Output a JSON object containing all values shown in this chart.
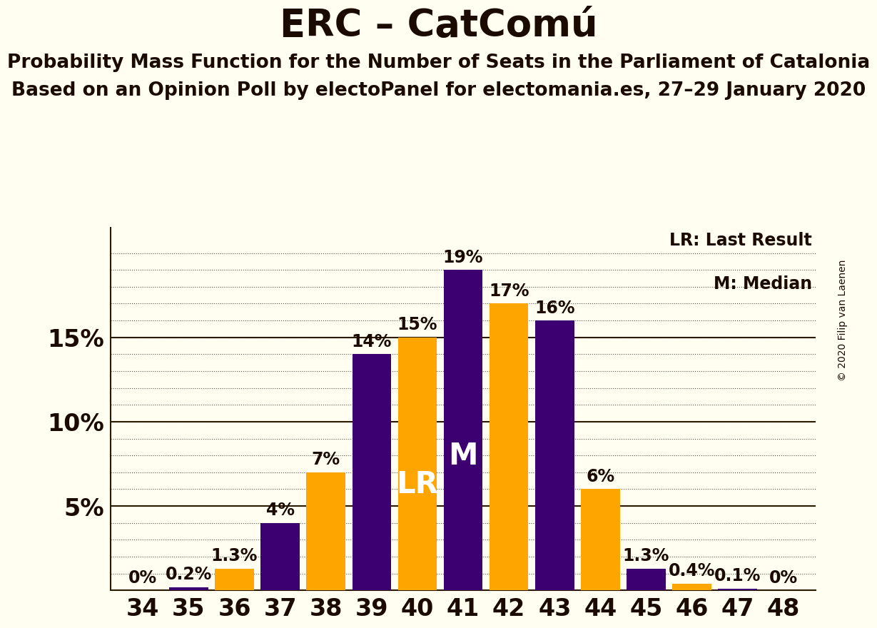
{
  "title": "ERC – CatComú",
  "subtitle1": "Probability Mass Function for the Number of Seats in the Parliament of Catalonia",
  "subtitle2": "Based on an Opinion Poll by electoPanel for electomania.es, 27–29 January 2020",
  "copyright": "© 2020 Filip van Laenen",
  "legend_lr": "LR: Last Result",
  "legend_m": "M: Median",
  "background_color": "#FFFEF0",
  "bar_color_purple": "#3D0070",
  "bar_color_orange": "#FFA500",
  "seats": [
    34,
    35,
    36,
    37,
    38,
    39,
    40,
    41,
    42,
    43,
    44,
    45,
    46,
    47,
    48
  ],
  "values": [
    0.0,
    0.2,
    1.3,
    4.0,
    7.0,
    14.0,
    15.0,
    19.0,
    17.0,
    16.0,
    6.0,
    1.3,
    0.4,
    0.1,
    0.0
  ],
  "colors": [
    "orange",
    "purple",
    "orange",
    "purple",
    "orange",
    "purple",
    "orange",
    "purple",
    "orange",
    "purple",
    "orange",
    "purple",
    "orange",
    "purple",
    "orange"
  ],
  "label_lr": 40,
  "label_m": 41,
  "ylim": [
    0,
    21.5
  ],
  "bar_labels": [
    "0%",
    "0.2%",
    "1.3%",
    "4%",
    "7%",
    "14%",
    "15%",
    "19%",
    "17%",
    "16%",
    "6%",
    "1.3%",
    "0.4%",
    "0.1%",
    "0%"
  ],
  "title_fontsize": 38,
  "subtitle_fontsize": 19,
  "label_fontsize": 17,
  "tick_fontsize": 24,
  "ytick_fontsize": 24,
  "annot_fontsize": 30,
  "copyright_fontsize": 10,
  "legend_fontsize": 17
}
